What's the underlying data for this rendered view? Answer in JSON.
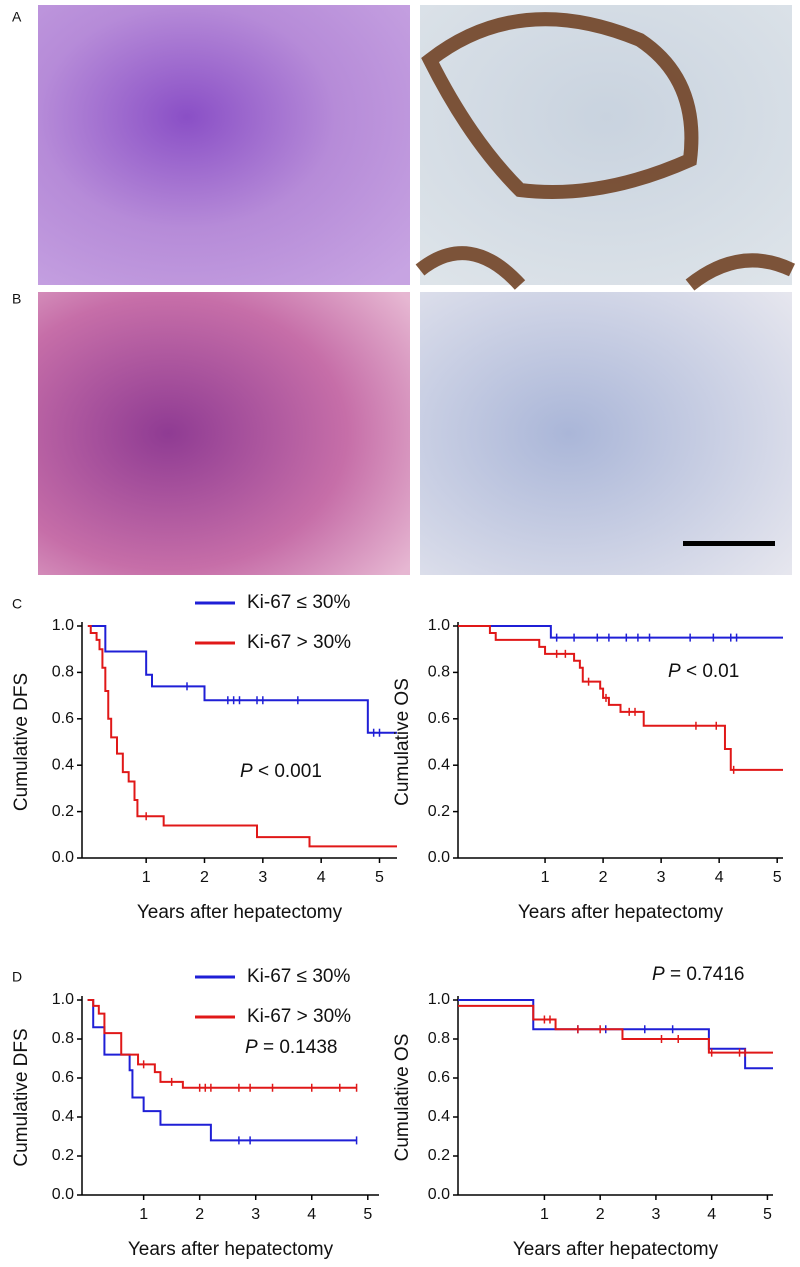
{
  "panel_labels": [
    "A",
    "B",
    "C",
    "D"
  ],
  "chart_data": [
    {
      "type": "step",
      "ylabel": "Cumulative DFS",
      "xlabel": "Years after hepatectomy",
      "xlim": [
        -0.1,
        5.3
      ],
      "ylim": [
        0,
        1
      ],
      "xticks": [
        1,
        2,
        3,
        4,
        5
      ],
      "yticks": [
        {
          "value": 0,
          "label": "0.0"
        },
        0.2,
        0.4,
        0.6,
        0.8,
        {
          "value": 1,
          "label": "1.0"
        }
      ],
      "legend": true,
      "annotation": {
        "italic": "P",
        "text": " < 0.001"
      },
      "series": [
        {
          "name": "Ki-67 ≤ 30%",
          "color": "#1f1fd6",
          "x": [
            0,
            0.3,
            1.0,
            1.1,
            2.0,
            4.8,
            5.3
          ],
          "values": [
            1.0,
            0.89,
            0.79,
            0.74,
            0.68,
            0.54,
            0.54
          ],
          "censor_x": [
            1.7,
            2.4,
            2.5,
            2.6,
            2.9,
            3.0,
            3.6,
            4.9,
            5.0
          ]
        },
        {
          "name": "Ki-67 > 30%",
          "color": "#e01818",
          "x": [
            0,
            0.05,
            0.15,
            0.2,
            0.25,
            0.3,
            0.35,
            0.4,
            0.5,
            0.6,
            0.7,
            0.8,
            0.85,
            1.3,
            2.9,
            3.8,
            5.3
          ],
          "values": [
            1.0,
            0.97,
            0.94,
            0.9,
            0.82,
            0.72,
            0.6,
            0.52,
            0.45,
            0.37,
            0.33,
            0.25,
            0.18,
            0.14,
            0.09,
            0.05,
            0.05
          ],
          "censor_x": [
            1.0
          ]
        }
      ]
    },
    {
      "type": "step",
      "ylabel": "Cumulative OS",
      "xlabel": "Years after hepatectomy",
      "xlim": [
        -0.5,
        5.1
      ],
      "ylim": [
        0,
        1
      ],
      "xticks": [
        1,
        2,
        3,
        4,
        5
      ],
      "yticks": [
        {
          "value": 0,
          "label": "0.0"
        },
        0.2,
        0.4,
        0.6,
        0.8,
        {
          "value": 1,
          "label": "1.0"
        }
      ],
      "legend": false,
      "annotation": {
        "italic": "P",
        "text": " < 0.01"
      },
      "series": [
        {
          "color": "#1f1fd6",
          "x": [
            -0.5,
            1.1,
            5.1
          ],
          "values": [
            1.0,
            0.95,
            0.95
          ],
          "censor_x": [
            1.2,
            1.5,
            1.9,
            2.1,
            2.4,
            2.6,
            2.8,
            3.5,
            3.9,
            4.2,
            4.3
          ]
        },
        {
          "color": "#e01818",
          "x": [
            -0.5,
            0.05,
            0.15,
            0.9,
            1.0,
            1.5,
            1.6,
            1.65,
            1.95,
            2.0,
            2.1,
            2.3,
            2.7,
            4.1,
            4.2,
            5.1
          ],
          "values": [
            1.0,
            0.97,
            0.94,
            0.91,
            0.88,
            0.85,
            0.82,
            0.76,
            0.73,
            0.69,
            0.66,
            0.63,
            0.57,
            0.47,
            0.38,
            0.38
          ],
          "censor_x": [
            1.2,
            1.35,
            1.75,
            2.05,
            2.45,
            2.55,
            3.6,
            3.95,
            4.25
          ]
        }
      ]
    },
    {
      "type": "step",
      "ylabel": "Cumulative DFS",
      "xlabel": "Years after hepatectomy",
      "xlim": [
        -0.1,
        5.2
      ],
      "ylim": [
        0,
        1
      ],
      "xticks": [
        1,
        2,
        3,
        4,
        5
      ],
      "yticks": [
        {
          "value": 0,
          "label": "0.0"
        },
        0.2,
        0.4,
        0.6,
        0.8,
        {
          "value": 1,
          "label": "1.0"
        }
      ],
      "legend": true,
      "annotation": {
        "italic": "P",
        "text": " = 0.1438"
      },
      "series": [
        {
          "name": "Ki-67 ≤ 30%",
          "color": "#1f1fd6",
          "x": [
            0,
            0.1,
            0.3,
            0.75,
            0.8,
            1.0,
            1.3,
            2.2,
            4.8
          ],
          "values": [
            1.0,
            0.86,
            0.72,
            0.64,
            0.5,
            0.43,
            0.36,
            0.28,
            0.28
          ],
          "censor_x": [
            2.7,
            2.9,
            4.8
          ]
        },
        {
          "name": "Ki-67 > 30%",
          "color": "#e01818",
          "x": [
            0,
            0.1,
            0.2,
            0.3,
            0.6,
            0.9,
            1.2,
            1.3,
            1.7,
            4.8
          ],
          "values": [
            1.0,
            0.97,
            0.93,
            0.83,
            0.72,
            0.67,
            0.63,
            0.58,
            0.55,
            0.55
          ],
          "censor_x": [
            1.0,
            1.5,
            2.0,
            2.1,
            2.2,
            2.7,
            2.9,
            3.3,
            4.0,
            4.5,
            4.8
          ]
        }
      ]
    },
    {
      "type": "step",
      "ylabel": "Cumulative OS",
      "xlabel": "Years after hepatectomy",
      "xlim": [
        -0.55,
        5.1
      ],
      "ylim": [
        0,
        1
      ],
      "xticks": [
        1,
        2,
        3,
        4,
        5
      ],
      "yticks": [
        {
          "value": 0,
          "label": "0.0"
        },
        0.2,
        0.4,
        0.6,
        0.8,
        {
          "value": 1,
          "label": "1.0"
        }
      ],
      "legend": false,
      "annotation": {
        "italic": "P",
        "text": " = 0.7416"
      },
      "series": [
        {
          "color": "#1f1fd6",
          "x": [
            -0.55,
            0.8,
            3.95,
            4.6,
            5.1
          ],
          "values": [
            1.0,
            0.85,
            0.75,
            0.65,
            0.65
          ],
          "censor_x": [
            1.6,
            2.1,
            2.8,
            3.3
          ]
        },
        {
          "color": "#e01818",
          "x": [
            -0.55,
            0.8,
            1.2,
            2.4,
            3.95,
            5.1
          ],
          "values": [
            0.97,
            0.9,
            0.85,
            0.8,
            0.73,
            0.73
          ],
          "censor_x": [
            1.0,
            1.1,
            1.6,
            2.0,
            3.1,
            3.4,
            4.0,
            4.5,
            4.6
          ]
        }
      ]
    }
  ]
}
